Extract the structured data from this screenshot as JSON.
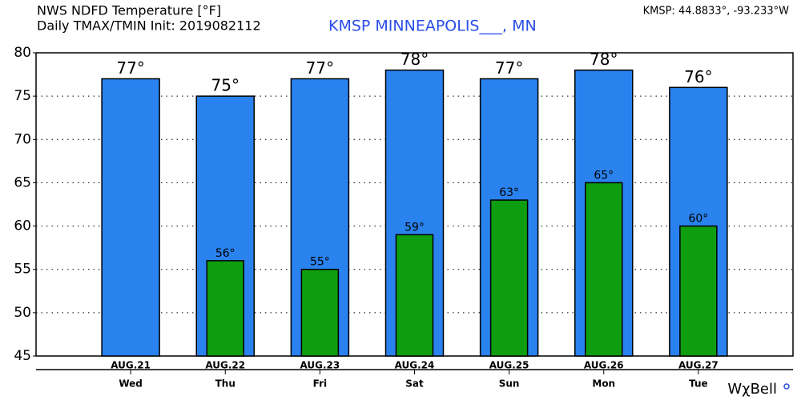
{
  "chart_data": {
    "type": "bar",
    "title": "NWS NDFD Temperature [°F]",
    "subtitle": "Daily TMAX/TMIN Init: 2019082112",
    "station": "KMSP MINNEAPOLIS___, MN",
    "location": "KMSP: 44.8833°, -93.233°W",
    "brand": "WχBell",
    "categories": [
      "AUG.21",
      "AUG.22",
      "AUG.23",
      "AUG.24",
      "AUG.25",
      "AUG.26",
      "AUG.27"
    ],
    "category_sublabels": [
      "Wed",
      "Thu",
      "Fri",
      "Sat",
      "Sun",
      "Mon",
      "Tue"
    ],
    "series": [
      {
        "name": "TMAX",
        "color": "#2a82ee",
        "values": [
          77,
          75,
          77,
          78,
          77,
          78,
          76
        ],
        "value_labels": [
          "77°",
          "75°",
          "77°",
          "78°",
          "77°",
          "78°",
          "76°"
        ]
      },
      {
        "name": "TMIN",
        "color": "#0f9d10",
        "values": [
          null,
          56,
          55,
          59,
          63,
          65,
          60
        ],
        "value_labels": [
          null,
          "56°",
          "55°",
          "59°",
          "63°",
          "65°",
          "60°"
        ]
      }
    ],
    "ylim": [
      45,
      80
    ],
    "yticks": [
      45,
      50,
      55,
      60,
      65,
      70,
      75,
      80
    ],
    "grid": true
  }
}
